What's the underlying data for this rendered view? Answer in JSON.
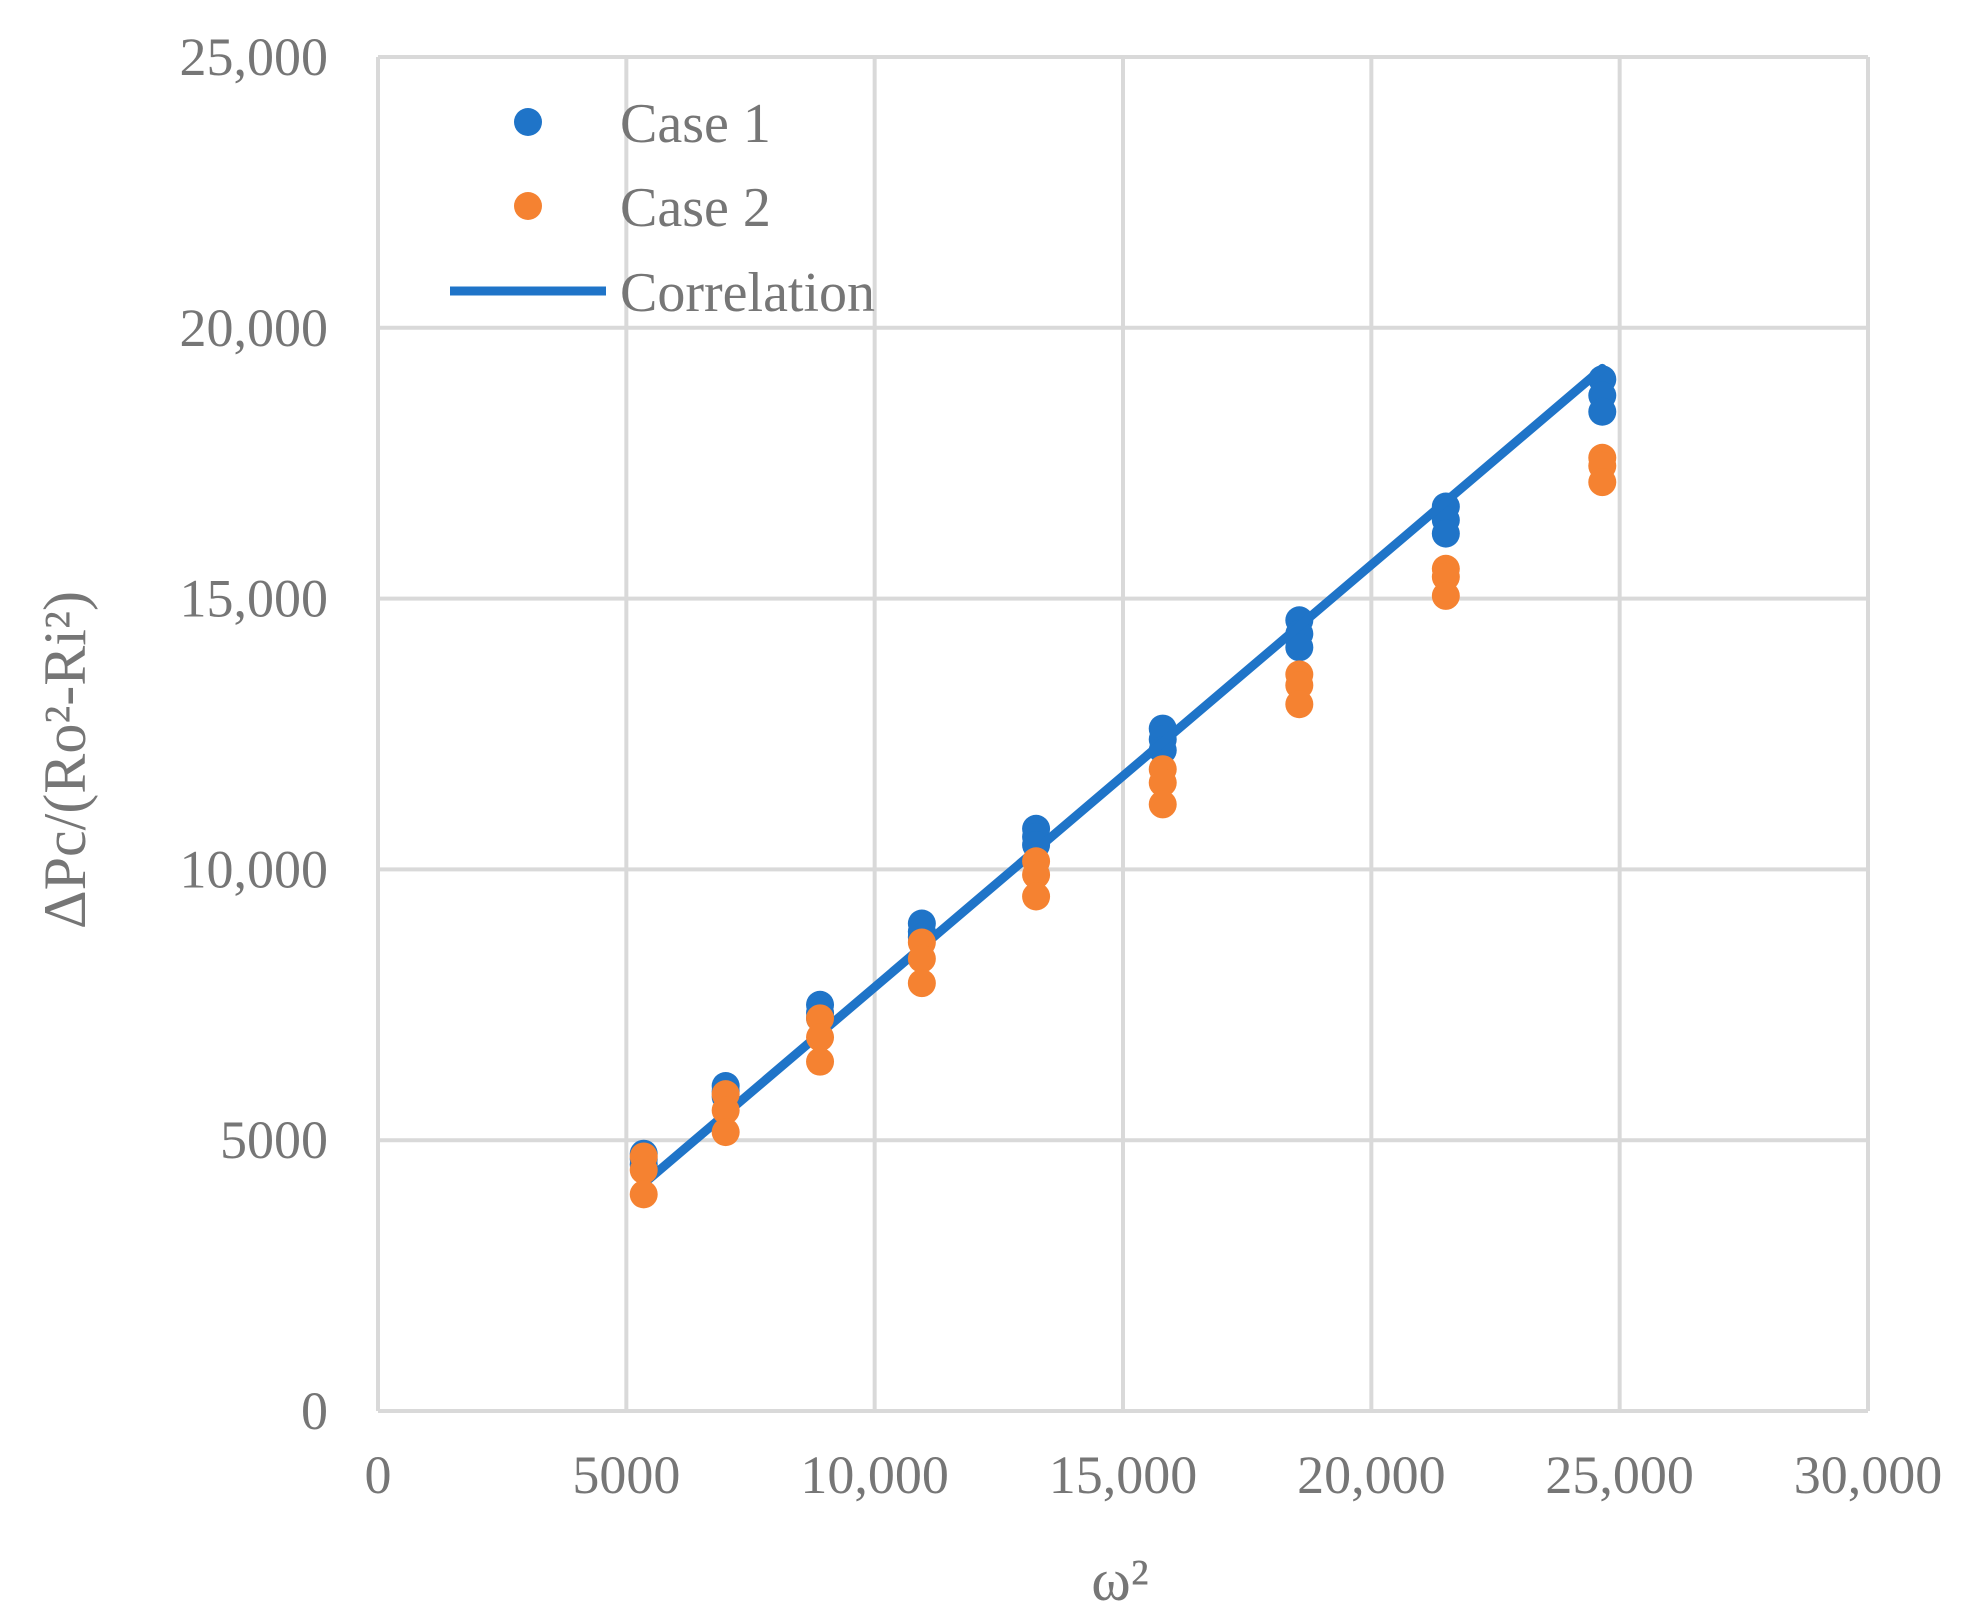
{
  "chart_data": {
    "type": "scatter",
    "title": "",
    "xlabel": "ω²",
    "ylabel": "ΔPc/(Ro²-Ri²)",
    "xlim": [
      0,
      30000
    ],
    "ylim": [
      0,
      25000
    ],
    "x_ticks": [
      "0",
      "5000",
      "10,000",
      "15,000",
      "20,000",
      "25,000",
      "30,000"
    ],
    "y_ticks": [
      "0",
      "5000",
      "10,000",
      "15,000",
      "20,000",
      "25,000"
    ],
    "grid": true,
    "legend_position": "top-left",
    "legend": [
      "Case 1",
      "Case 2",
      "Correlation"
    ],
    "colors": {
      "case1": "#1f74c8",
      "case2": "#f58231",
      "correlation": "#1f74c8",
      "grid": "#d9d9d9",
      "text": "#767676"
    },
    "series": [
      {
        "name": "Case 1",
        "kind": "scatter",
        "points": [
          [
            5350,
            4750
          ],
          [
            5350,
            4650
          ],
          [
            5350,
            4550
          ],
          [
            7000,
            6000
          ],
          [
            7000,
            5900
          ],
          [
            7000,
            5800
          ],
          [
            8900,
            7500
          ],
          [
            8900,
            7350
          ],
          [
            8900,
            7250
          ],
          [
            10950,
            9000
          ],
          [
            10950,
            8850
          ],
          [
            10950,
            8750
          ],
          [
            13250,
            10750
          ],
          [
            13250,
            10600
          ],
          [
            13250,
            10450
          ],
          [
            15800,
            12600
          ],
          [
            15800,
            12400
          ],
          [
            15800,
            12200
          ],
          [
            18550,
            14600
          ],
          [
            18550,
            14350
          ],
          [
            18550,
            14100
          ],
          [
            21500,
            16700
          ],
          [
            21500,
            16450
          ],
          [
            21500,
            16200
          ],
          [
            24650,
            19050
          ],
          [
            24650,
            18750
          ],
          [
            24650,
            18450
          ]
        ]
      },
      {
        "name": "Case 2",
        "kind": "scatter",
        "points": [
          [
            5350,
            4700
          ],
          [
            5350,
            4450
          ],
          [
            5350,
            4000
          ],
          [
            7000,
            5850
          ],
          [
            7000,
            5550
          ],
          [
            7000,
            5150
          ],
          [
            8900,
            7250
          ],
          [
            8900,
            6900
          ],
          [
            8900,
            6450
          ],
          [
            10950,
            8650
          ],
          [
            10950,
            8350
          ],
          [
            10950,
            7900
          ],
          [
            13250,
            10150
          ],
          [
            13250,
            9900
          ],
          [
            13250,
            9500
          ],
          [
            15800,
            11850
          ],
          [
            15800,
            11600
          ],
          [
            15800,
            11200
          ],
          [
            18550,
            13600
          ],
          [
            18550,
            13400
          ],
          [
            18550,
            13050
          ],
          [
            21500,
            15550
          ],
          [
            21500,
            15400
          ],
          [
            21500,
            15050
          ],
          [
            24650,
            17600
          ],
          [
            24650,
            17450
          ],
          [
            24650,
            17150
          ]
        ]
      },
      {
        "name": "Correlation",
        "kind": "line",
        "points": [
          [
            5350,
            4200
          ],
          [
            24650,
            19250
          ]
        ]
      }
    ]
  }
}
